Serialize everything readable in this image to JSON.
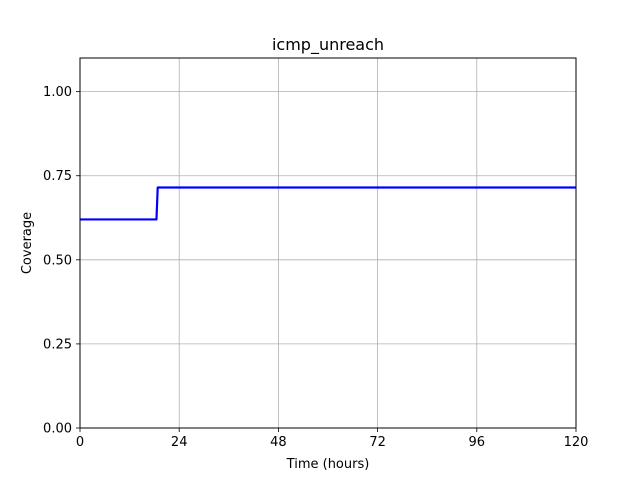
{
  "chart_data": {
    "type": "line",
    "title": "icmp_unreach",
    "xlabel": "Time (hours)",
    "ylabel": "Coverage",
    "xlim": [
      0,
      120
    ],
    "ylim": [
      0,
      1.1
    ],
    "xticks": [
      0,
      24,
      48,
      72,
      96,
      120
    ],
    "xtick_labels": [
      "0",
      "24",
      "48",
      "72",
      "96",
      "120"
    ],
    "yticks": [
      0,
      0.25,
      0.5,
      0.75,
      1.0
    ],
    "ytick_labels": [
      "0.00",
      "0.25",
      "0.50",
      "0.75",
      "1.00"
    ],
    "grid": true,
    "series": [
      {
        "color": "#0000ff",
        "x": [
          0,
          18.5,
          18.8,
          120
        ],
        "y": [
          0.62,
          0.62,
          0.715,
          0.715
        ]
      }
    ]
  }
}
